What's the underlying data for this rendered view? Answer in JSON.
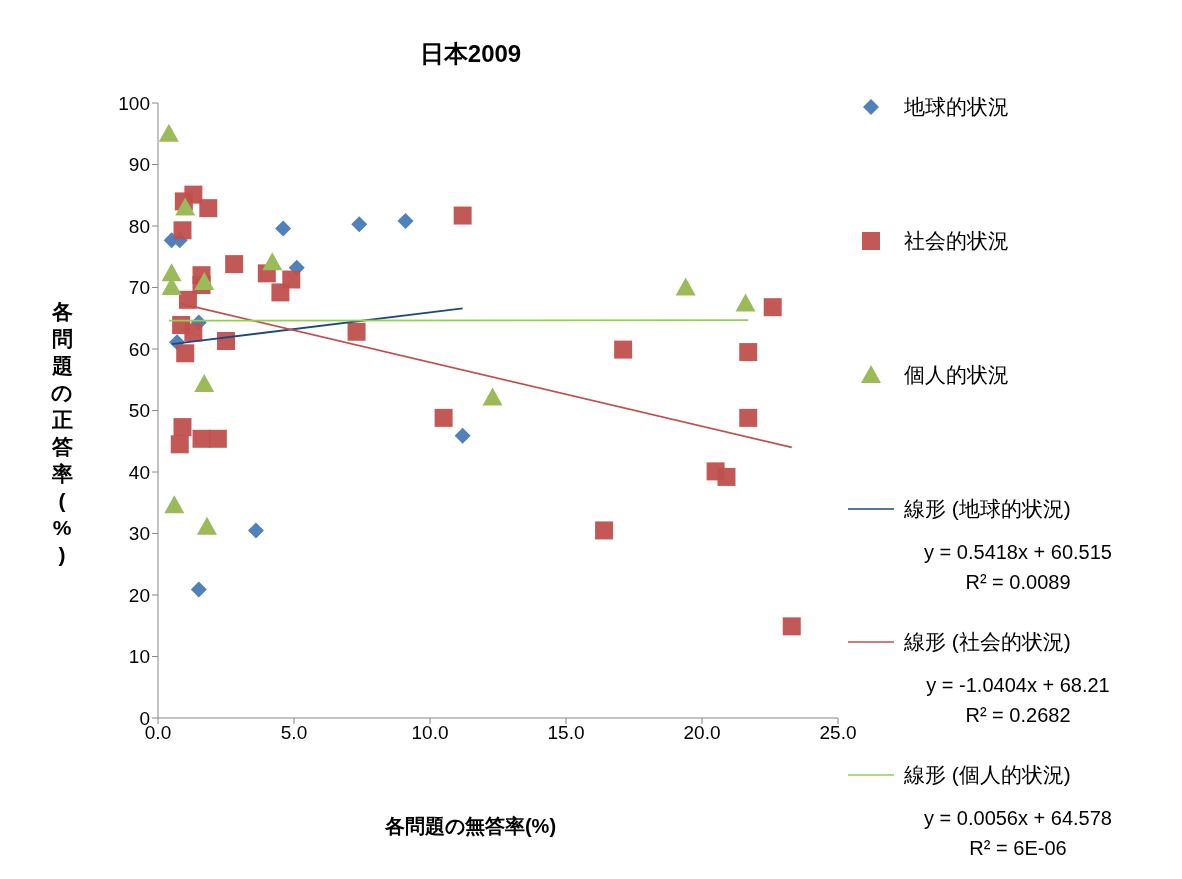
{
  "chart_data": {
    "type": "scatter",
    "title": "日本2009",
    "xlabel": "各問題の無答率(%)",
    "ylabel": "各問題の正答率(%)",
    "xlim": [
      0,
      25
    ],
    "xticks": [
      {
        "value": 0,
        "label": "0.0"
      },
      {
        "value": 5,
        "label": "5.0"
      },
      {
        "value": 10,
        "label": "10.0"
      },
      {
        "value": 15,
        "label": "15.0"
      },
      {
        "value": 20,
        "label": "20.0"
      },
      {
        "value": 25,
        "label": "25.0"
      }
    ],
    "ylim": [
      0,
      100
    ],
    "yticks": [
      0,
      10,
      20,
      30,
      40,
      50,
      60,
      70,
      80,
      90,
      100
    ],
    "grid": false,
    "legend": "right",
    "series": [
      {
        "name": "地球的状況",
        "marker": "diamond",
        "color": "#4f81bd",
        "x": [
          0.5,
          0.8,
          0.7,
          1.5,
          1.5,
          3.6,
          4.6,
          5.1,
          7.4,
          9.1,
          11.2
        ],
        "values": [
          77.7,
          77.7,
          61.1,
          64.3,
          20.9,
          30.5,
          79.6,
          73.2,
          80.3,
          80.8,
          45.9
        ]
      },
      {
        "name": "社会的状況",
        "marker": "square",
        "color": "#c0504d",
        "x": [
          1.3,
          0.95,
          1.85,
          0.9,
          2.8,
          1.6,
          1.6,
          4.0,
          4.9,
          4.5,
          1.1,
          0.85,
          1.3,
          2.5,
          1.0,
          7.3,
          11.2,
          10.5,
          0.9,
          0.8,
          1.6,
          2.2,
          17.1,
          16.4,
          20.5,
          20.9,
          21.7,
          21.7,
          22.6,
          23.3
        ],
        "values": [
          85.1,
          84.0,
          82.9,
          79.3,
          73.8,
          72.0,
          70.4,
          72.3,
          71.3,
          69.2,
          68.0,
          63.9,
          62.7,
          61.3,
          59.3,
          62.8,
          81.7,
          48.8,
          47.3,
          44.5,
          45.4,
          45.4,
          59.9,
          30.5,
          40.1,
          39.2,
          59.5,
          48.8,
          66.8,
          14.9
        ]
      },
      {
        "name": "個人的状況",
        "marker": "triangle",
        "color": "#9bbb59",
        "x": [
          0.4,
          1.0,
          0.5,
          0.5,
          1.7,
          4.2,
          1.7,
          0.6,
          1.8,
          12.3,
          19.4,
          21.6
        ],
        "values": [
          95.0,
          83.0,
          72.3,
          70.1,
          70.9,
          74.1,
          54.3,
          34.6,
          31.1,
          52.1,
          70.0,
          67.4
        ]
      },
      {
        "name": "線形 (地球的状況)",
        "type": "line",
        "color": "#1f497d",
        "x": [
          0.5,
          11.2
        ],
        "values": [
          60.8,
          66.6
        ]
      },
      {
        "name": "線形 (社会的状況)",
        "type": "line",
        "color": "#c0504d",
        "x": [
          0.8,
          23.3
        ],
        "values": [
          67.4,
          44.0
        ]
      },
      {
        "name": "線形 (個人的状況)",
        "type": "line",
        "color": "#92d050",
        "x": [
          0.4,
          21.7
        ],
        "values": [
          64.6,
          64.7
        ]
      }
    ],
    "annotations": [
      "y = 0.5418x + 60.515\nR² = 0.0089",
      "y = -1.0404x + 68.21\nR² = 0.2682",
      "y = 0.0056x + 64.578\nR² = 6E-06"
    ]
  }
}
